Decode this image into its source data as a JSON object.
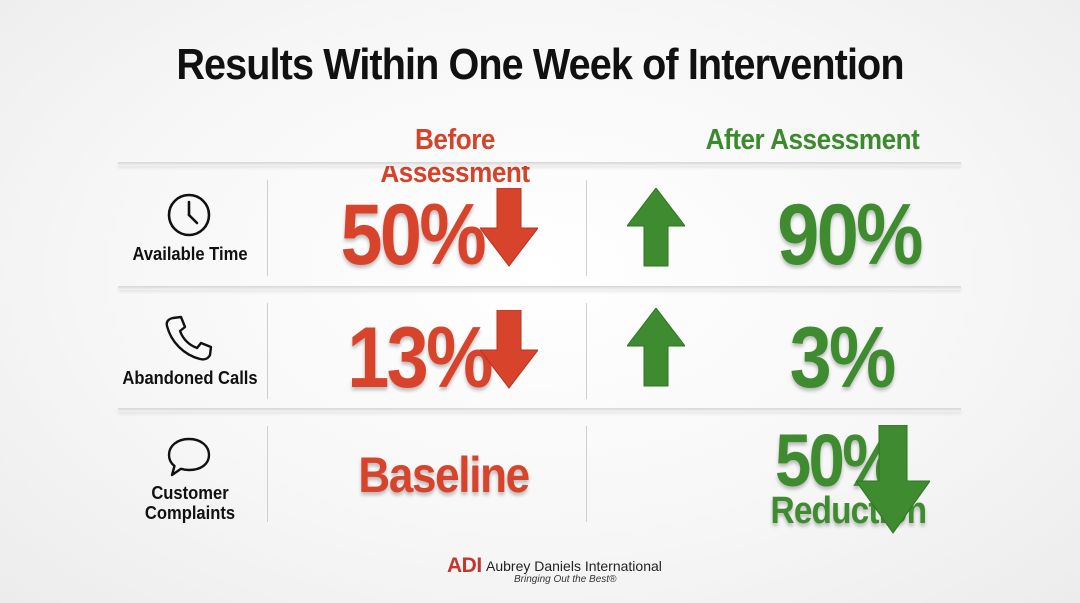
{
  "title": "Results Within One Week of Intervention",
  "columns": {
    "before": "Before Assessment",
    "after": "After Assessment"
  },
  "rows": [
    {
      "label": "Available Time",
      "icon": "clock-icon",
      "before_value": "50%",
      "before_trend": "down",
      "after_value": "90%",
      "after_trend": "up"
    },
    {
      "label": "Abandoned Calls",
      "icon": "phone-icon",
      "before_value": "13%",
      "before_trend": "down",
      "after_value": "3%",
      "after_trend": "up"
    },
    {
      "label_line1": "Customer",
      "label_line2": "Complaints",
      "icon": "speech-bubble-icon",
      "before_value": "Baseline",
      "after_value": "50%",
      "after_subvalue": "Reduction",
      "after_trend": "down"
    }
  ],
  "footer": {
    "logo": "ADI",
    "company": "Aubrey Daniels International",
    "tagline": "Bringing Out the Best®"
  },
  "colors": {
    "before": "#d8432c",
    "after": "#3f8b2f",
    "title": "#111111",
    "logo": "#c8352d"
  }
}
